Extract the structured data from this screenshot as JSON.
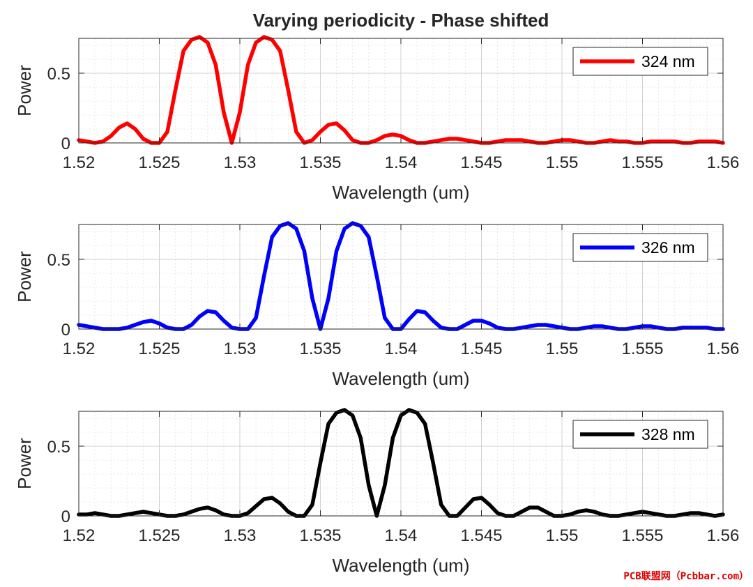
{
  "title": "Varying periodicity - Phase shifted",
  "watermark": "PCB联盟网（Pcbbar.com）",
  "chart_data": [
    {
      "type": "line",
      "xlabel": "Wavelength (um)",
      "ylabel": "Power",
      "xlim": [
        1.52,
        1.56
      ],
      "ylim": [
        0,
        0.75
      ],
      "xticks": [
        1.52,
        1.525,
        1.53,
        1.535,
        1.54,
        1.545,
        1.55,
        1.555,
        1.56
      ],
      "xtick_labels": [
        "1.52",
        "1.525",
        "1.53",
        "1.535",
        "1.54",
        "1.545",
        "1.55",
        "1.555",
        "1.56"
      ],
      "yticks": [
        0,
        0.5
      ],
      "ytick_labels": [
        "0",
        "0.5"
      ],
      "grid": true,
      "minor_grid": true,
      "legend_position": "top-right",
      "series": [
        {
          "name": "324 nm",
          "color": "#ff0000",
          "x": [
            1.52,
            1.5205,
            1.521,
            1.5215,
            1.522,
            1.5225,
            1.523,
            1.5235,
            1.524,
            1.5245,
            1.525,
            1.5255,
            1.526,
            1.5265,
            1.527,
            1.5275,
            1.528,
            1.5285,
            1.529,
            1.5295,
            1.53,
            1.5305,
            1.531,
            1.5315,
            1.532,
            1.5325,
            1.533,
            1.5335,
            1.534,
            1.5345,
            1.535,
            1.5355,
            1.536,
            1.5365,
            1.537,
            1.5375,
            1.538,
            1.5385,
            1.539,
            1.5395,
            1.54,
            1.5405,
            1.541,
            1.5415,
            1.542,
            1.5425,
            1.543,
            1.5435,
            1.544,
            1.5445,
            1.545,
            1.5455,
            1.546,
            1.5465,
            1.547,
            1.5475,
            1.548,
            1.5485,
            1.549,
            1.5495,
            1.55,
            1.5505,
            1.551,
            1.5515,
            1.552,
            1.5525,
            1.553,
            1.5535,
            1.554,
            1.5545,
            1.555,
            1.5555,
            1.556,
            1.5565,
            1.557,
            1.5575,
            1.558,
            1.5585,
            1.559,
            1.5595,
            1.56
          ],
          "y": [
            0.02,
            0.01,
            0.0,
            0.01,
            0.05,
            0.11,
            0.14,
            0.1,
            0.03,
            0.0,
            0.0,
            0.08,
            0.38,
            0.66,
            0.74,
            0.76,
            0.72,
            0.56,
            0.22,
            0.0,
            0.22,
            0.56,
            0.72,
            0.76,
            0.74,
            0.66,
            0.38,
            0.08,
            0.0,
            0.02,
            0.08,
            0.13,
            0.14,
            0.09,
            0.02,
            0.0,
            0.0,
            0.02,
            0.05,
            0.06,
            0.05,
            0.02,
            0.0,
            0.0,
            0.01,
            0.02,
            0.03,
            0.03,
            0.02,
            0.01,
            0.0,
            0.0,
            0.01,
            0.02,
            0.02,
            0.02,
            0.01,
            0.0,
            0.0,
            0.01,
            0.02,
            0.02,
            0.01,
            0.0,
            0.0,
            0.01,
            0.02,
            0.01,
            0.01,
            0.0,
            0.0,
            0.01,
            0.01,
            0.01,
            0.01,
            0.0,
            0.0,
            0.01,
            0.01,
            0.01,
            0.0
          ]
        }
      ]
    },
    {
      "type": "line",
      "xlabel": "Wavelength (um)",
      "ylabel": "Power",
      "xlim": [
        1.52,
        1.56
      ],
      "ylim": [
        0,
        0.75
      ],
      "xticks": [
        1.52,
        1.525,
        1.53,
        1.535,
        1.54,
        1.545,
        1.55,
        1.555,
        1.56
      ],
      "xtick_labels": [
        "1.52",
        "1.525",
        "1.53",
        "1.535",
        "1.54",
        "1.545",
        "1.55",
        "1.555",
        "1.56"
      ],
      "yticks": [
        0,
        0.5
      ],
      "ytick_labels": [
        "0",
        "0.5"
      ],
      "grid": true,
      "minor_grid": true,
      "legend_position": "top-right",
      "series": [
        {
          "name": "326 nm",
          "color": "#0000ff",
          "x": [
            1.52,
            1.5205,
            1.521,
            1.5215,
            1.522,
            1.5225,
            1.523,
            1.5235,
            1.524,
            1.5245,
            1.525,
            1.5255,
            1.526,
            1.5265,
            1.527,
            1.5275,
            1.528,
            1.5285,
            1.529,
            1.5295,
            1.53,
            1.5305,
            1.531,
            1.5315,
            1.532,
            1.5325,
            1.533,
            1.5335,
            1.534,
            1.5345,
            1.535,
            1.5355,
            1.536,
            1.5365,
            1.537,
            1.5375,
            1.538,
            1.5385,
            1.539,
            1.5395,
            1.54,
            1.5405,
            1.541,
            1.5415,
            1.542,
            1.5425,
            1.543,
            1.5435,
            1.544,
            1.5445,
            1.545,
            1.5455,
            1.546,
            1.5465,
            1.547,
            1.5475,
            1.548,
            1.5485,
            1.549,
            1.5495,
            1.55,
            1.5505,
            1.551,
            1.5515,
            1.552,
            1.5525,
            1.553,
            1.5535,
            1.554,
            1.5545,
            1.555,
            1.5555,
            1.556,
            1.5565,
            1.557,
            1.5575,
            1.558,
            1.5585,
            1.559,
            1.5595,
            1.56
          ],
          "y": [
            0.03,
            0.02,
            0.01,
            0.0,
            0.0,
            0.0,
            0.01,
            0.03,
            0.05,
            0.06,
            0.04,
            0.01,
            0.0,
            0.0,
            0.03,
            0.09,
            0.13,
            0.12,
            0.06,
            0.01,
            0.0,
            0.0,
            0.08,
            0.38,
            0.66,
            0.74,
            0.76,
            0.72,
            0.56,
            0.22,
            0.0,
            0.22,
            0.56,
            0.72,
            0.76,
            0.74,
            0.66,
            0.38,
            0.08,
            0.0,
            0.0,
            0.07,
            0.13,
            0.12,
            0.06,
            0.01,
            0.0,
            0.0,
            0.03,
            0.06,
            0.06,
            0.04,
            0.01,
            0.0,
            0.0,
            0.01,
            0.02,
            0.03,
            0.03,
            0.02,
            0.01,
            0.0,
            0.0,
            0.01,
            0.02,
            0.02,
            0.01,
            0.0,
            0.0,
            0.01,
            0.02,
            0.02,
            0.01,
            0.0,
            0.0,
            0.01,
            0.01,
            0.01,
            0.01,
            0.0,
            0.0
          ]
        }
      ]
    },
    {
      "type": "line",
      "xlabel": "Wavelength (um)",
      "ylabel": "Power",
      "xlim": [
        1.52,
        1.56
      ],
      "ylim": [
        0,
        0.75
      ],
      "xticks": [
        1.52,
        1.525,
        1.53,
        1.535,
        1.54,
        1.545,
        1.55,
        1.555,
        1.56
      ],
      "xtick_labels": [
        "1.52",
        "1.525",
        "1.53",
        "1.535",
        "1.54",
        "1.545",
        "1.55",
        "1.555",
        "1.56"
      ],
      "yticks": [
        0,
        0.5
      ],
      "ytick_labels": [
        "0",
        "0.5"
      ],
      "grid": true,
      "minor_grid": true,
      "legend_position": "top-right",
      "series": [
        {
          "name": "328 nm",
          "color": "#000000",
          "x": [
            1.52,
            1.5205,
            1.521,
            1.5215,
            1.522,
            1.5225,
            1.523,
            1.5235,
            1.524,
            1.5245,
            1.525,
            1.5255,
            1.526,
            1.5265,
            1.527,
            1.5275,
            1.528,
            1.5285,
            1.529,
            1.5295,
            1.53,
            1.5305,
            1.531,
            1.5315,
            1.532,
            1.5325,
            1.533,
            1.5335,
            1.534,
            1.5345,
            1.535,
            1.5355,
            1.536,
            1.5365,
            1.537,
            1.5375,
            1.538,
            1.5385,
            1.539,
            1.5395,
            1.54,
            1.5405,
            1.541,
            1.5415,
            1.542,
            1.5425,
            1.543,
            1.5435,
            1.544,
            1.5445,
            1.545,
            1.5455,
            1.546,
            1.5465,
            1.547,
            1.5475,
            1.548,
            1.5485,
            1.549,
            1.5495,
            1.55,
            1.5505,
            1.551,
            1.5515,
            1.552,
            1.5525,
            1.553,
            1.5535,
            1.554,
            1.5545,
            1.555,
            1.5555,
            1.556,
            1.5565,
            1.557,
            1.5575,
            1.558,
            1.5585,
            1.559,
            1.5595,
            1.56
          ],
          "y": [
            0.01,
            0.01,
            0.02,
            0.01,
            0.0,
            0.0,
            0.01,
            0.02,
            0.03,
            0.02,
            0.01,
            0.0,
            0.0,
            0.01,
            0.03,
            0.05,
            0.06,
            0.04,
            0.01,
            0.0,
            0.0,
            0.02,
            0.07,
            0.12,
            0.13,
            0.09,
            0.03,
            0.0,
            0.0,
            0.08,
            0.38,
            0.66,
            0.74,
            0.76,
            0.72,
            0.56,
            0.22,
            0.0,
            0.22,
            0.56,
            0.72,
            0.76,
            0.74,
            0.66,
            0.38,
            0.08,
            0.0,
            0.0,
            0.06,
            0.12,
            0.13,
            0.08,
            0.02,
            0.0,
            0.0,
            0.03,
            0.06,
            0.06,
            0.03,
            0.0,
            0.0,
            0.01,
            0.03,
            0.04,
            0.03,
            0.01,
            0.0,
            0.0,
            0.01,
            0.02,
            0.03,
            0.02,
            0.01,
            0.0,
            0.0,
            0.01,
            0.02,
            0.02,
            0.01,
            0.0,
            0.01
          ]
        }
      ]
    }
  ]
}
